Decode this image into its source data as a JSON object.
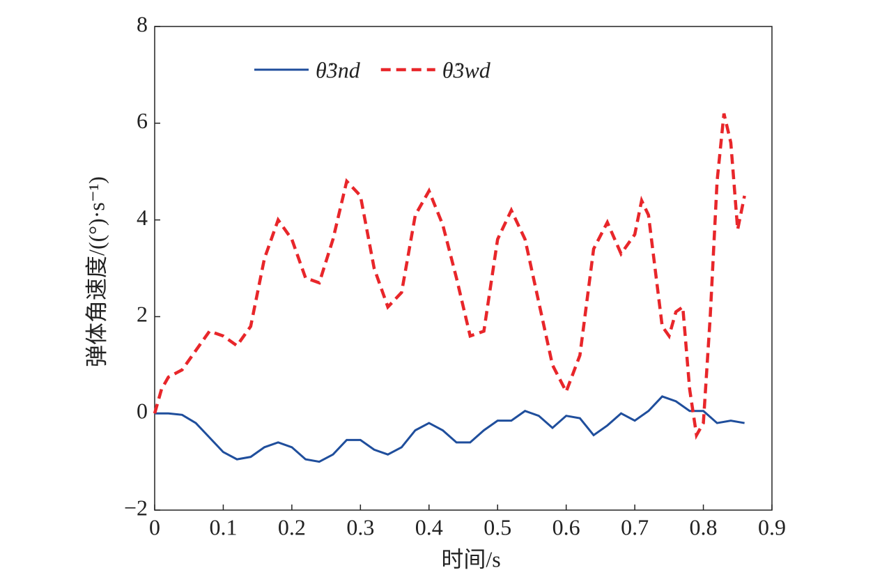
{
  "chart_data": {
    "type": "line",
    "xlabel": "时间/s",
    "ylabel": "弹体角速度/((°)·s⁻¹)",
    "xlim": [
      0,
      0.9
    ],
    "xticks": [
      0,
      0.1,
      0.2,
      0.3,
      0.4,
      0.5,
      0.6,
      0.7,
      0.8,
      0.9
    ],
    "ylim": [
      -2,
      8
    ],
    "yticks": [
      {
        "value": -2,
        "label": "−2"
      },
      0,
      2,
      4,
      6,
      8
    ],
    "legend": "upper left",
    "series": [
      {
        "name": "θ̇3nd",
        "color": "#1f4e9c",
        "dash": false,
        "x": [
          0,
          0.02,
          0.04,
          0.06,
          0.08,
          0.1,
          0.12,
          0.14,
          0.16,
          0.18,
          0.2,
          0.22,
          0.24,
          0.26,
          0.28,
          0.3,
          0.32,
          0.34,
          0.36,
          0.38,
          0.4,
          0.42,
          0.44,
          0.46,
          0.48,
          0.5,
          0.52,
          0.54,
          0.56,
          0.58,
          0.6,
          0.62,
          0.64,
          0.66,
          0.68,
          0.7,
          0.72,
          0.74,
          0.76,
          0.78,
          0.8,
          0.82,
          0.84,
          0.86
        ],
        "values": [
          0,
          0,
          -0.03,
          -0.2,
          -0.5,
          -0.8,
          -0.95,
          -0.9,
          -0.7,
          -0.6,
          -0.7,
          -0.95,
          -1.0,
          -0.85,
          -0.55,
          -0.55,
          -0.75,
          -0.85,
          -0.7,
          -0.35,
          -0.2,
          -0.35,
          -0.6,
          -0.6,
          -0.35,
          -0.15,
          -0.15,
          0.05,
          -0.05,
          -0.3,
          -0.05,
          -0.1,
          -0.45,
          -0.25,
          0.0,
          -0.15,
          0.05,
          0.35,
          0.25,
          0.05,
          0.05,
          -0.2,
          -0.15,
          -0.2
        ]
      },
      {
        "name": "θ̇3wd",
        "color": "#e8262a",
        "dash": true,
        "x": [
          0,
          0.01,
          0.02,
          0.04,
          0.06,
          0.08,
          0.1,
          0.12,
          0.14,
          0.16,
          0.18,
          0.2,
          0.22,
          0.24,
          0.26,
          0.28,
          0.3,
          0.32,
          0.34,
          0.36,
          0.38,
          0.4,
          0.42,
          0.44,
          0.46,
          0.48,
          0.5,
          0.52,
          0.54,
          0.56,
          0.58,
          0.6,
          0.62,
          0.64,
          0.66,
          0.68,
          0.7,
          0.71,
          0.72,
          0.74,
          0.75,
          0.76,
          0.77,
          0.78,
          0.79,
          0.8,
          0.81,
          0.82,
          0.83,
          0.84,
          0.85,
          0.86
        ],
        "values": [
          0,
          0.5,
          0.75,
          0.9,
          1.3,
          1.7,
          1.6,
          1.4,
          1.8,
          3.2,
          4.0,
          3.6,
          2.8,
          2.7,
          3.6,
          4.8,
          4.5,
          3.0,
          2.2,
          2.5,
          4.1,
          4.6,
          3.9,
          2.8,
          1.6,
          1.7,
          3.6,
          4.2,
          3.6,
          2.3,
          1.0,
          0.45,
          1.2,
          3.4,
          3.95,
          3.3,
          3.7,
          4.4,
          4.1,
          1.8,
          1.6,
          2.1,
          2.2,
          0.5,
          -0.45,
          -0.2,
          2.0,
          4.8,
          6.2,
          5.6,
          3.8,
          4.5
        ]
      }
    ]
  }
}
